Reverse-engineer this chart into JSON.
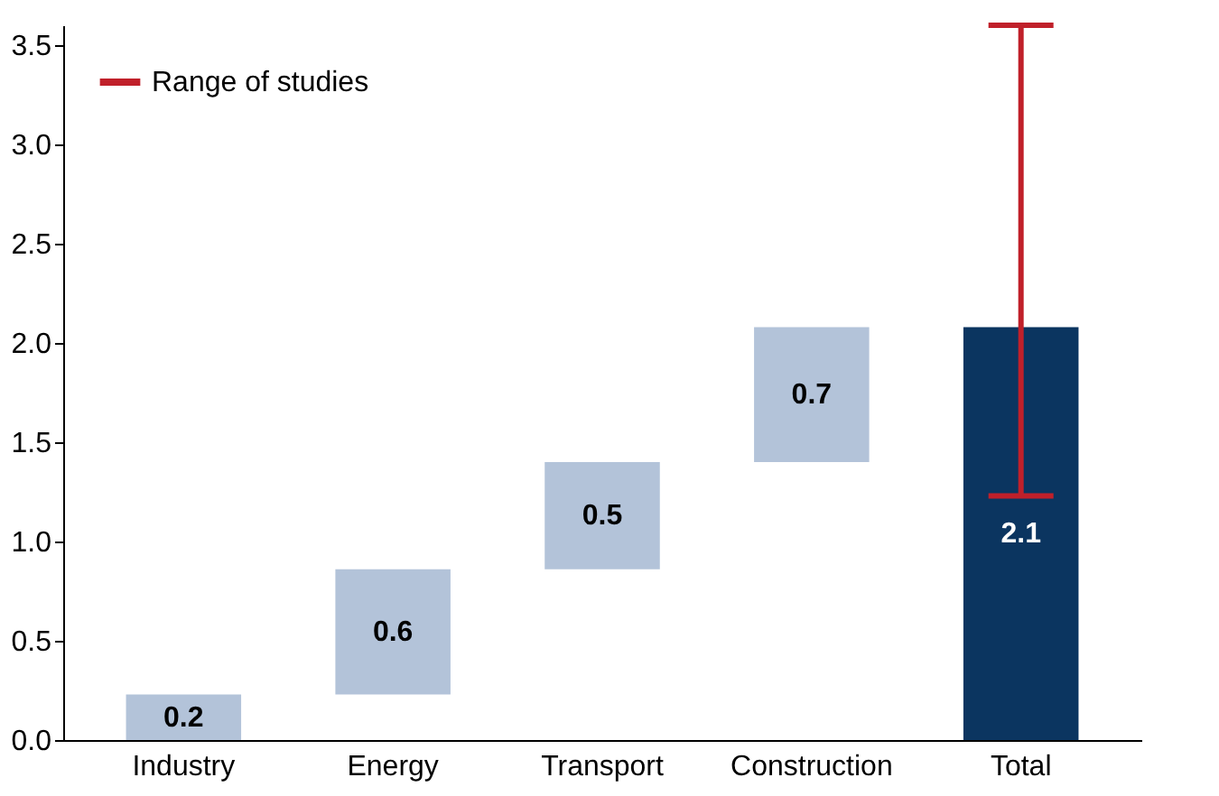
{
  "chart_data": {
    "type": "bar",
    "categories": [
      "Industry",
      "Energy",
      "Transport",
      "Construction",
      "Total"
    ],
    "base": [
      0,
      0.23,
      0.86,
      1.4,
      0
    ],
    "values": [
      0.23,
      0.63,
      0.54,
      0.68,
      2.08
    ],
    "colors": [
      "#b3c3d9",
      "#b3c3d9",
      "#b3c3d9",
      "#b3c3d9",
      "#0b3560"
    ],
    "value_labels": [
      "0.2",
      "0.6",
      "0.5",
      "0.7",
      "2.1"
    ],
    "errors": [
      null,
      null,
      null,
      null,
      [
        1.23,
        3.6
      ]
    ],
    "annotations": [
      "Range of studies"
    ],
    "ylim": [
      0,
      3.6
    ],
    "yticks": [
      {
        "value": 0,
        "label": "0.0"
      },
      {
        "value": 0.5,
        "label": "0.5"
      },
      {
        "value": 1,
        "label": "1.0"
      },
      {
        "value": 1.5,
        "label": "1.5"
      },
      {
        "value": 2,
        "label": "2.0"
      },
      {
        "value": 2.5,
        "label": "2.5"
      },
      {
        "value": 3,
        "label": "3.0"
      },
      {
        "value": 3.5,
        "label": "3.5"
      }
    ],
    "grid": false
  }
}
